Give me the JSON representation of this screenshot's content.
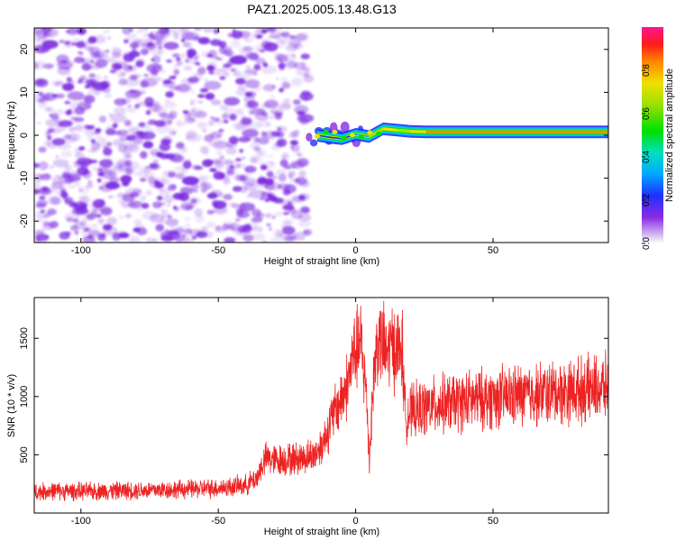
{
  "title": "PAZ1.2025.005.13.48.G13",
  "colors": {
    "snr_line": "#ee2222",
    "spectrogram_noise": "#7a2be0",
    "ridge_peak": "#ff2020"
  },
  "chart_data": [
    {
      "type": "heatmap",
      "name": "spectrogram",
      "xlabel": "Height of straight line (km)",
      "ylabel": "Frequency (Hz)",
      "xlim": [
        -117,
        92
      ],
      "ylim": [
        -25,
        25
      ],
      "x_ticks": [
        -100,
        -50,
        0,
        50
      ],
      "x_tick_labels": [
        "-100",
        "-50",
        "0",
        "50"
      ],
      "y_ticks": [
        20,
        10,
        0,
        -10,
        -20
      ],
      "y_tick_labels": [
        "20",
        "10",
        "0",
        "-10",
        "-20"
      ],
      "colorbar": {
        "label": "Normalized spectral amplitude",
        "range": [
          0,
          1
        ],
        "ticks": [
          0,
          0.2,
          0.4,
          0.6,
          0.8
        ],
        "tick_labels": [
          "0.0",
          "0.2",
          "0.4",
          "0.6",
          "0.8"
        ]
      },
      "noise_region_x": [
        -117,
        -17
      ],
      "ridge": [
        {
          "x": -14,
          "f": 0.0,
          "amp": 0.15
        },
        {
          "x": -9,
          "f": -0.5,
          "amp": 0.3
        },
        {
          "x": -5,
          "f": -0.8,
          "amp": 0.25
        },
        {
          "x": 0,
          "f": 0.2,
          "amp": 0.35
        },
        {
          "x": 5,
          "f": -0.3,
          "amp": 0.4
        },
        {
          "x": 10,
          "f": 1.5,
          "amp": 0.95
        },
        {
          "x": 15,
          "f": 1.2,
          "amp": 0.6
        },
        {
          "x": 20,
          "f": 0.9,
          "amp": 0.7
        },
        {
          "x": 26,
          "f": 0.8,
          "amp": 0.9
        },
        {
          "x": 40,
          "f": 0.8,
          "amp": 0.9
        },
        {
          "x": 60,
          "f": 0.8,
          "amp": 0.9
        },
        {
          "x": 80,
          "f": 0.8,
          "amp": 0.9
        },
        {
          "x": 92,
          "f": 0.8,
          "amp": 0.85
        }
      ]
    },
    {
      "type": "line",
      "name": "snr",
      "xlabel": "Height of straight line (km)",
      "ylabel": "SNR (10 * v/v)",
      "xlim": [
        -117,
        92
      ],
      "ylim": [
        0,
        1850
      ],
      "x_ticks": [
        -100,
        -50,
        0,
        50
      ],
      "x_tick_labels": [
        "-100",
        "-50",
        "0",
        "50"
      ],
      "y_ticks": [
        500,
        1000,
        1500
      ],
      "y_tick_labels": [
        "500",
        "1000",
        "1500"
      ],
      "series": [
        {
          "x": [
            -117,
            -110,
            -100,
            -90,
            -80,
            -70,
            -60,
            -50,
            -45,
            -40,
            -36,
            -34,
            -32,
            -30,
            -25,
            -20,
            -15,
            -12,
            -10,
            -8,
            -5,
            -3,
            -1,
            2,
            4,
            5,
            6,
            7,
            8,
            9,
            10,
            11,
            13,
            15,
            17,
            18,
            20,
            25,
            30,
            40,
            50,
            60,
            70,
            80,
            92
          ],
          "y": [
            180,
            190,
            185,
            190,
            195,
            200,
            205,
            215,
            225,
            240,
            300,
            420,
            480,
            450,
            460,
            470,
            500,
            600,
            720,
            850,
            1000,
            1100,
            1350,
            1450,
            1000,
            450,
            950,
            1300,
            1500,
            1450,
            1450,
            1350,
            1450,
            1400,
            1400,
            850,
            860,
            900,
            930,
            960,
            990,
            1010,
            1030,
            1050,
            1080
          ]
        }
      ]
    }
  ]
}
